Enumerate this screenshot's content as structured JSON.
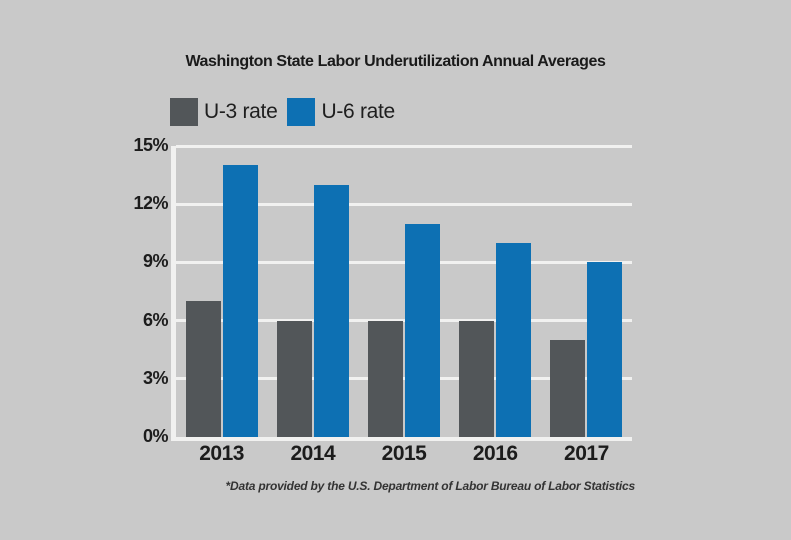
{
  "chart_data": {
    "type": "bar",
    "title": "Washington State Labor Underutilization Annual Averages",
    "categories": [
      "2013",
      "2014",
      "2015",
      "2016",
      "2017"
    ],
    "series": [
      {
        "name": "U-3 rate",
        "color": "#525659",
        "values": [
          7,
          6,
          6,
          6,
          5
        ]
      },
      {
        "name": "U-6  rate",
        "color": "#0d70b3",
        "values": [
          14,
          13,
          11,
          10,
          9
        ]
      }
    ],
    "ylim": [
      0,
      15
    ],
    "y_ticks": [
      "15%",
      "12%",
      "9%",
      "6%",
      "3%",
      "0%"
    ],
    "y_tick_step_percent": 3,
    "grid": true,
    "legend_position": "top-left",
    "footnote": "*Data provided by the U.S. Department of Labor Bureau of Labor Statistics",
    "colors": {
      "background": "#c9c9c9",
      "gridline": "#f1f1f0",
      "bar_u3": "#525659",
      "bar_u6": "#0d70b3",
      "text": "#1a1a1a"
    }
  }
}
